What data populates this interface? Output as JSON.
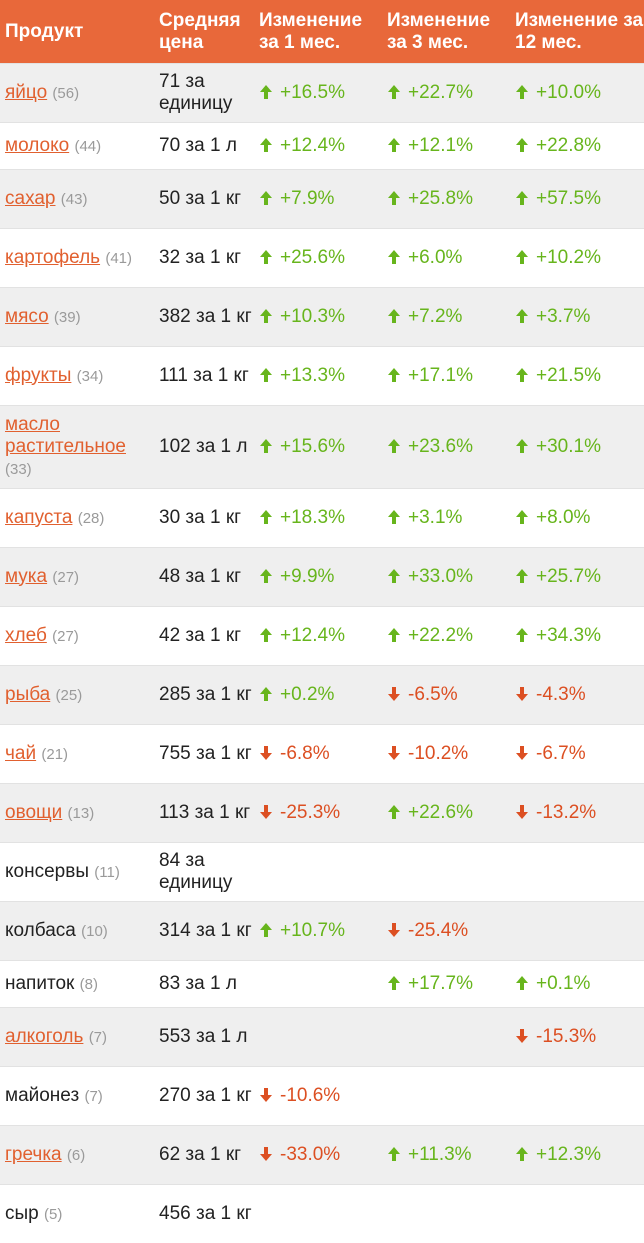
{
  "header": {
    "col_product": "Продукт",
    "col_price": "Средняя цена",
    "col_1m": "Изменение за 1 мес.",
    "col_3m": "Изменение за 3 мес.",
    "col_12m": "Изменение за 12 мес."
  },
  "colors": {
    "header_bg": "#e8683a",
    "link": "#e1602f",
    "up": "#67b51c",
    "down": "#dc4f22"
  },
  "rows": [
    {
      "name": "яйцо",
      "count": "(56)",
      "link": true,
      "price": "71 за единицу",
      "m1": {
        "v": "+16.5%",
        "dir": "up"
      },
      "m3": {
        "v": "+22.7%",
        "dir": "up"
      },
      "m12": {
        "v": "+10.0%",
        "dir": "up"
      }
    },
    {
      "name": "молоко",
      "count": "(44)",
      "link": true,
      "price": "70 за 1 л",
      "m1": {
        "v": "+12.4%",
        "dir": "up"
      },
      "m3": {
        "v": "+12.1%",
        "dir": "up"
      },
      "m12": {
        "v": "+22.8%",
        "dir": "up"
      }
    },
    {
      "name": "сахар",
      "count": "(43)",
      "link": true,
      "price": "50 за 1 кг",
      "m1": {
        "v": "+7.9%",
        "dir": "up"
      },
      "m3": {
        "v": "+25.8%",
        "dir": "up"
      },
      "m12": {
        "v": "+57.5%",
        "dir": "up"
      }
    },
    {
      "name": "картофель",
      "count": "(41)",
      "link": true,
      "price": "32 за 1 кг",
      "m1": {
        "v": "+25.6%",
        "dir": "up"
      },
      "m3": {
        "v": "+6.0%",
        "dir": "up"
      },
      "m12": {
        "v": "+10.2%",
        "dir": "up"
      }
    },
    {
      "name": "мясо",
      "count": "(39)",
      "link": true,
      "price": "382 за 1 кг",
      "m1": {
        "v": "+10.3%",
        "dir": "up"
      },
      "m3": {
        "v": "+7.2%",
        "dir": "up"
      },
      "m12": {
        "v": "+3.7%",
        "dir": "up"
      }
    },
    {
      "name": "фрукты",
      "count": "(34)",
      "link": true,
      "price": "111 за 1 кг",
      "m1": {
        "v": "+13.3%",
        "dir": "up"
      },
      "m3": {
        "v": "+17.1%",
        "dir": "up"
      },
      "m12": {
        "v": "+21.5%",
        "dir": "up"
      }
    },
    {
      "name": "масло растительное",
      "count": "(33)",
      "link": true,
      "price": "102 за 1 л",
      "m1": {
        "v": "+15.6%",
        "dir": "up"
      },
      "m3": {
        "v": "+23.6%",
        "dir": "up"
      },
      "m12": {
        "v": "+30.1%",
        "dir": "up"
      }
    },
    {
      "name": "капуста",
      "count": "(28)",
      "link": true,
      "price": "30 за 1 кг",
      "m1": {
        "v": "+18.3%",
        "dir": "up"
      },
      "m3": {
        "v": "+3.1%",
        "dir": "up"
      },
      "m12": {
        "v": "+8.0%",
        "dir": "up"
      }
    },
    {
      "name": "мука",
      "count": "(27)",
      "link": true,
      "price": "48 за 1 кг",
      "m1": {
        "v": "+9.9%",
        "dir": "up"
      },
      "m3": {
        "v": "+33.0%",
        "dir": "up"
      },
      "m12": {
        "v": "+25.7%",
        "dir": "up"
      }
    },
    {
      "name": "хлеб",
      "count": "(27)",
      "link": true,
      "price": "42 за 1 кг",
      "m1": {
        "v": "+12.4%",
        "dir": "up"
      },
      "m3": {
        "v": "+22.2%",
        "dir": "up"
      },
      "m12": {
        "v": "+34.3%",
        "dir": "up"
      }
    },
    {
      "name": "рыба",
      "count": "(25)",
      "link": true,
      "price": "285 за 1 кг",
      "m1": {
        "v": "+0.2%",
        "dir": "up"
      },
      "m3": {
        "v": "-6.5%",
        "dir": "down"
      },
      "m12": {
        "v": "-4.3%",
        "dir": "down"
      }
    },
    {
      "name": "чай",
      "count": "(21)",
      "link": true,
      "price": "755 за 1 кг",
      "m1": {
        "v": "-6.8%",
        "dir": "down"
      },
      "m3": {
        "v": "-10.2%",
        "dir": "down"
      },
      "m12": {
        "v": "-6.7%",
        "dir": "down"
      }
    },
    {
      "name": "овощи",
      "count": "(13)",
      "link": true,
      "price": "113 за 1 кг",
      "m1": {
        "v": "-25.3%",
        "dir": "down"
      },
      "m3": {
        "v": "+22.6%",
        "dir": "up"
      },
      "m12": {
        "v": "-13.2%",
        "dir": "down"
      }
    },
    {
      "name": "консервы",
      "count": "(11)",
      "link": false,
      "price": "84 за единицу",
      "m1": null,
      "m3": null,
      "m12": null
    },
    {
      "name": "колбаса",
      "count": "(10)",
      "link": false,
      "price": "314 за 1 кг",
      "m1": {
        "v": "+10.7%",
        "dir": "up"
      },
      "m3": {
        "v": "-25.4%",
        "dir": "down"
      },
      "m12": null
    },
    {
      "name": "напиток",
      "count": "(8)",
      "link": false,
      "price": "83 за 1 л",
      "m1": null,
      "m3": {
        "v": "+17.7%",
        "dir": "up"
      },
      "m12": {
        "v": "+0.1%",
        "dir": "up"
      }
    },
    {
      "name": "алкоголь",
      "count": "(7)",
      "link": true,
      "price": "553 за 1 л",
      "m1": null,
      "m3": null,
      "m12": {
        "v": "-15.3%",
        "dir": "down"
      }
    },
    {
      "name": "майонез",
      "count": "(7)",
      "link": false,
      "price": "270 за 1 кг",
      "m1": {
        "v": "-10.6%",
        "dir": "down"
      },
      "m3": null,
      "m12": null
    },
    {
      "name": "гречка",
      "count": "(6)",
      "link": true,
      "price": "62 за 1 кг",
      "m1": {
        "v": "-33.0%",
        "dir": "down"
      },
      "m3": {
        "v": "+11.3%",
        "dir": "up"
      },
      "m12": {
        "v": "+12.3%",
        "dir": "up"
      }
    },
    {
      "name": "сыр",
      "count": "(5)",
      "link": false,
      "price": "456 за 1 кг",
      "m1": null,
      "m3": null,
      "m12": null
    }
  ]
}
